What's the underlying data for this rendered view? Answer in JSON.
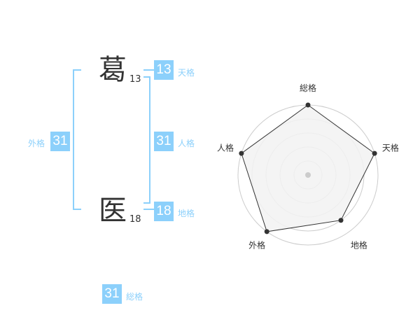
{
  "name": {
    "chars": [
      {
        "char": "葛",
        "strokes": "13"
      },
      {
        "char": "医",
        "strokes": "18"
      }
    ]
  },
  "fortunes": {
    "tenkaku": {
      "label": "天格",
      "value": "13"
    },
    "jinkaku": {
      "label": "人格",
      "value": "31"
    },
    "chikaku": {
      "label": "地格",
      "value": "18"
    },
    "gaikaku": {
      "label": "外格",
      "value": "31"
    },
    "soukaku": {
      "label": "総格",
      "value": "31"
    }
  },
  "colors": {
    "accent": "#8cd0fb",
    "radar_fill": "#f2f2f2",
    "radar_line": "#333333",
    "grid": "#cccccc"
  },
  "chart_data": {
    "type": "radar",
    "axes": [
      "総格",
      "天格",
      "地格",
      "外格",
      "人格"
    ],
    "values": [
      5,
      5,
      4,
      5,
      5
    ],
    "range": [
      0,
      5
    ],
    "rings": 5
  }
}
